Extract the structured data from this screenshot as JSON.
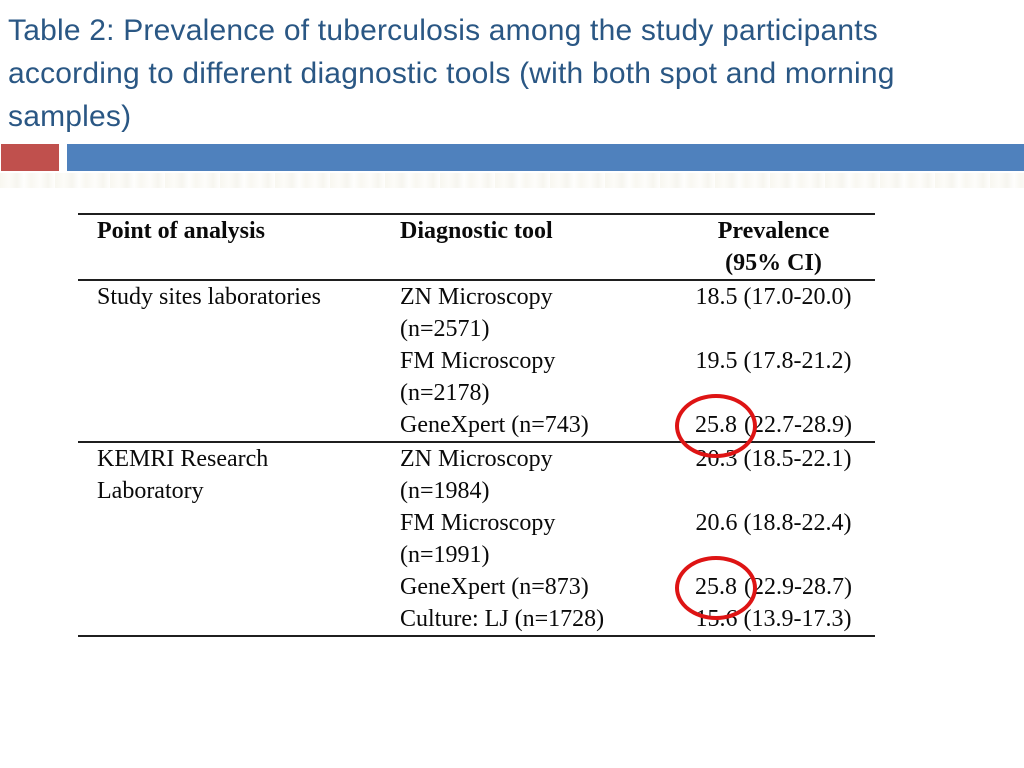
{
  "slide": {
    "title_lines": [
      "Table 2: Prevalence of tuberculosis among the study participants",
      "according to different diagnostic tools (with both spot and morning",
      "samples)"
    ]
  },
  "colors": {
    "title_blue": "#2A5784",
    "accent_square_red": "#C0504D",
    "accent_bar_blue": "#4F81BD",
    "annotation_circle_red": "#DE1414"
  },
  "table": {
    "headers": {
      "point_of_analysis": "Point of analysis",
      "diagnostic_tool": "Diagnostic tool",
      "prevalence_line1": "Prevalence",
      "prevalence_line2": "(95% CI)"
    },
    "groups": [
      {
        "site_lines": [
          "Study sites laboratories"
        ],
        "rows": [
          {
            "tool_line1": "ZN Microscopy",
            "tool_line2": "(n=2571)",
            "value": "18.5 (17.0-20.0)",
            "circled": ""
          },
          {
            "tool_line1": "FM Microscopy",
            "tool_line2": "(n=2178)",
            "value": "19.5 (17.8-21.2)",
            "circled": ""
          },
          {
            "tool_line1": "GeneXpert (n=743)",
            "tool_line2": "",
            "value": "(22.7-28.9)",
            "circled": "25.8"
          }
        ]
      },
      {
        "site_lines": [
          "KEMRI Research",
          "Laboratory"
        ],
        "rows": [
          {
            "tool_line1": "ZN Microscopy",
            "tool_line2": "(n=1984)",
            "value": "20.3 (18.5-22.1)",
            "circled": ""
          },
          {
            "tool_line1": "FM Microscopy",
            "tool_line2": "(n=1991)",
            "value": "20.6 (18.8-22.4)",
            "circled": ""
          },
          {
            "tool_line1": "GeneXpert (n=873)",
            "tool_line2": "",
            "value": "(22.9-28.7)",
            "circled": "25.8"
          },
          {
            "tool_line1": "Culture: LJ (n=1728)",
            "tool_line2": "",
            "value": "15.6 (13.9-17.3)",
            "circled": ""
          }
        ]
      }
    ]
  }
}
